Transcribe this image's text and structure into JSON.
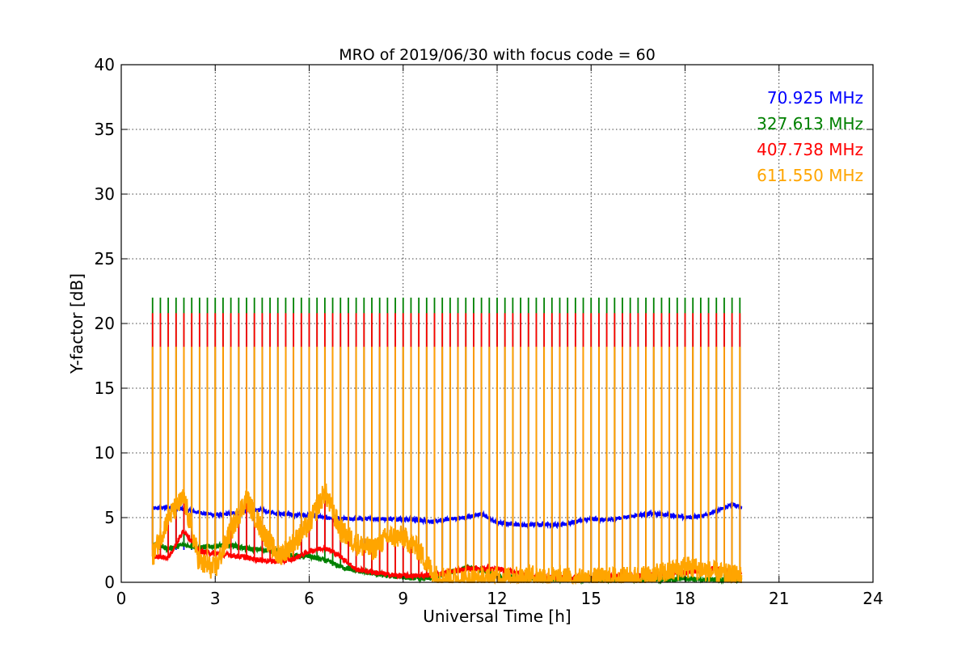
{
  "chart_data": {
    "type": "line",
    "title": "MRO of 2019/06/30 with focus code = 60",
    "xlabel": "Universal Time [h]",
    "ylabel": "Y-factor [dB]",
    "xlim": [
      0,
      24
    ],
    "ylim": [
      0,
      40
    ],
    "xticks": [
      0,
      3,
      6,
      9,
      12,
      15,
      18,
      21,
      24
    ],
    "yticks": [
      0,
      5,
      10,
      15,
      20,
      25,
      30,
      35,
      40
    ],
    "xtick_labels": [
      "0",
      "3",
      "6",
      "9",
      "12",
      "15",
      "18",
      "21",
      "24"
    ],
    "ytick_labels": [
      "0",
      "5",
      "10",
      "15",
      "20",
      "25",
      "30",
      "35",
      "40"
    ],
    "grid": true,
    "legend_position": "top-right",
    "calibration_pulse_interval_h": 0.25,
    "series": [
      {
        "name": "70.925 MHz",
        "color": "#0000ff",
        "pulse_peak": 2.5,
        "x": [
          1.0,
          1.5,
          2.0,
          2.5,
          3.0,
          3.5,
          4.0,
          4.5,
          5.0,
          5.5,
          6.0,
          6.5,
          7.0,
          7.5,
          8.0,
          8.5,
          9.0,
          9.5,
          10.0,
          10.5,
          11.0,
          11.5,
          12.0,
          12.5,
          13.0,
          13.5,
          14.0,
          14.5,
          15.0,
          15.5,
          16.0,
          16.5,
          17.0,
          17.5,
          18.0,
          18.5,
          19.0,
          19.5,
          19.8
        ],
        "values": [
          5.7,
          5.8,
          5.6,
          5.4,
          5.2,
          5.3,
          5.5,
          5.6,
          5.3,
          5.2,
          5.2,
          5.0,
          4.9,
          4.9,
          4.9,
          4.9,
          4.9,
          4.8,
          4.7,
          4.9,
          5.0,
          5.3,
          4.6,
          4.5,
          4.4,
          4.5,
          4.4,
          4.7,
          4.9,
          4.8,
          5.0,
          5.2,
          5.3,
          5.2,
          5.0,
          5.1,
          5.5,
          6.0,
          5.8
        ]
      },
      {
        "name": "327.613 MHz",
        "color": "#008000",
        "pulse_peak": 22.0,
        "x": [
          1.0,
          1.5,
          2.0,
          2.5,
          3.0,
          3.5,
          4.0,
          4.5,
          5.0,
          5.5,
          6.0,
          6.5,
          7.0,
          7.5,
          8.0,
          8.5,
          9.0,
          9.5,
          10.0,
          10.5,
          11.0,
          11.5,
          12.0,
          12.5,
          13.0,
          13.5,
          14.0,
          14.5,
          15.0,
          15.5,
          16.0,
          16.5,
          17.0,
          17.5,
          18.0,
          18.5,
          19.0,
          19.5,
          19.8
        ],
        "values": [
          3.0,
          2.6,
          2.9,
          2.7,
          2.8,
          2.9,
          2.6,
          2.5,
          2.4,
          2.0,
          2.0,
          1.7,
          1.2,
          0.9,
          0.7,
          0.5,
          0.4,
          0.3,
          0.3,
          0.8,
          1.1,
          1.0,
          0.5,
          0.4,
          0.3,
          0.3,
          0.2,
          0.2,
          0.2,
          0.2,
          0.2,
          0.2,
          0.2,
          0.2,
          0.3,
          0.2,
          0.2,
          0.2,
          0.2
        ]
      },
      {
        "name": "407.738 MHz",
        "color": "#ff0000",
        "pulse_peak": 20.8,
        "x": [
          1.0,
          1.5,
          2.0,
          2.5,
          3.0,
          3.5,
          4.0,
          4.5,
          5.0,
          5.5,
          6.0,
          6.5,
          7.0,
          7.5,
          8.0,
          8.5,
          9.0,
          9.5,
          10.0,
          10.5,
          11.0,
          11.5,
          12.0,
          12.5,
          13.0,
          13.5,
          14.0,
          14.5,
          15.0,
          15.5,
          16.0,
          16.5,
          17.0,
          17.5,
          18.0,
          18.5,
          19.0,
          19.5,
          19.8
        ],
        "values": [
          2.0,
          1.9,
          4.0,
          2.4,
          2.2,
          2.1,
          1.9,
          1.7,
          1.6,
          1.8,
          2.4,
          2.7,
          2.0,
          1.0,
          0.8,
          0.6,
          0.5,
          0.5,
          0.6,
          0.8,
          1.0,
          1.1,
          1.0,
          0.8,
          0.5,
          0.4,
          0.4,
          0.3,
          0.4,
          0.4,
          0.5,
          0.5,
          0.6,
          0.7,
          0.8,
          0.9,
          1.1,
          0.8,
          0.6
        ]
      },
      {
        "name": "611.550 MHz",
        "color": "#ffa500",
        "pulse_peak": 18.2,
        "x": [
          1.0,
          1.5,
          2.0,
          2.5,
          3.0,
          3.5,
          4.0,
          4.5,
          5.0,
          5.5,
          6.0,
          6.5,
          7.0,
          7.5,
          8.0,
          8.5,
          9.0,
          9.5,
          10.0,
          10.5,
          11.0,
          11.5,
          12.0,
          12.5,
          13.0,
          13.5,
          14.0,
          14.5,
          15.0,
          15.5,
          16.0,
          16.5,
          17.0,
          17.5,
          18.0,
          18.5,
          19.0,
          19.5,
          19.8
        ],
        "values": [
          2.0,
          5.0,
          6.5,
          1.5,
          1.0,
          4.0,
          6.5,
          4.0,
          2.0,
          3.0,
          4.5,
          7.0,
          4.0,
          3.0,
          2.5,
          3.5,
          3.5,
          2.5,
          0.5,
          0.3,
          0.2,
          0.2,
          0.3,
          0.3,
          0.5,
          0.4,
          0.3,
          0.2,
          0.2,
          0.3,
          0.3,
          0.4,
          0.5,
          0.8,
          1.2,
          1.0,
          0.7,
          0.5,
          0.4
        ]
      }
    ]
  }
}
